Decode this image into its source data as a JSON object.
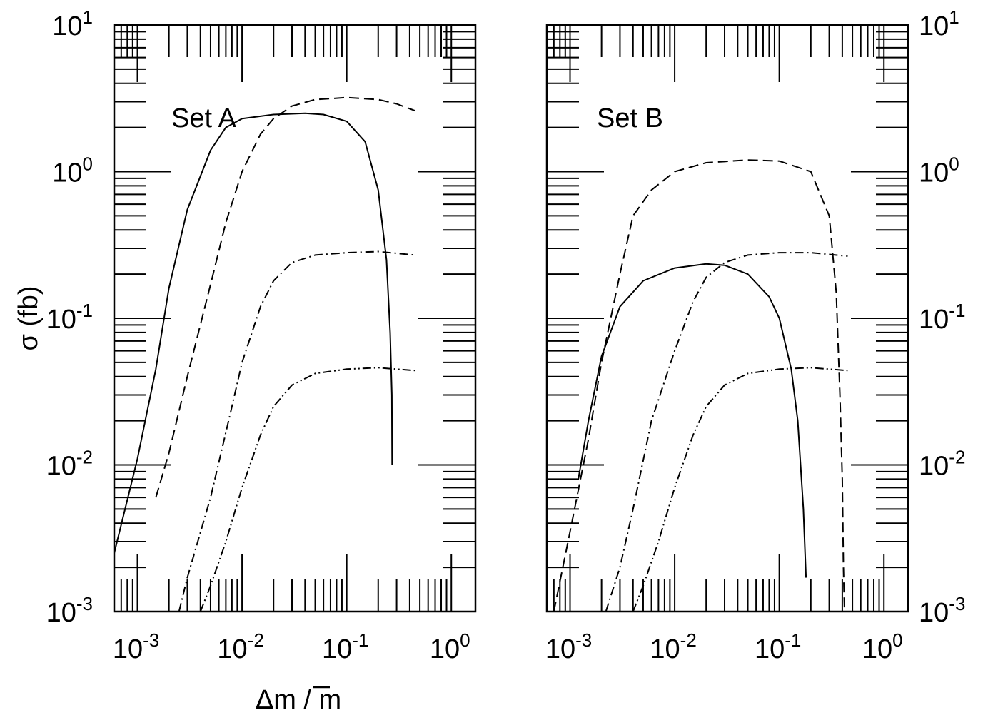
{
  "ylabel": "σ (fb)",
  "xlabel": "Δm / m",
  "chart_data": [
    {
      "type": "line",
      "title": "Set A",
      "xscale": "log",
      "yscale": "log",
      "xlim": [
        0.0006,
        1.7
      ],
      "ylim": [
        0.001,
        10
      ],
      "x_ticks": [
        {
          "base": "10",
          "exp": "-3",
          "value": 0.001
        },
        {
          "base": "10",
          "exp": "-2",
          "value": 0.01
        },
        {
          "base": "10",
          "exp": "-1",
          "value": 0.1
        },
        {
          "base": "10",
          "exp": "0",
          "value": 1
        }
      ],
      "y_ticks": [
        {
          "base": "10",
          "exp": "-3",
          "value": 0.001
        },
        {
          "base": "10",
          "exp": "-2",
          "value": 0.01
        },
        {
          "base": "10",
          "exp": "-1",
          "value": 0.1
        },
        {
          "base": "10",
          "exp": "0",
          "value": 1
        },
        {
          "base": "10",
          "exp": "1",
          "value": 10
        }
      ],
      "series": [
        {
          "style": "solid",
          "points": [
            [
              0.0006,
              0.0025
            ],
            [
              0.001,
              0.011
            ],
            [
              0.0015,
              0.045
            ],
            [
              0.002,
              0.16
            ],
            [
              0.003,
              0.55
            ],
            [
              0.005,
              1.4
            ],
            [
              0.007,
              2.0
            ],
            [
              0.01,
              2.3
            ],
            [
              0.02,
              2.45
            ],
            [
              0.04,
              2.5
            ],
            [
              0.06,
              2.45
            ],
            [
              0.1,
              2.2
            ],
            [
              0.15,
              1.6
            ],
            [
              0.2,
              0.75
            ],
            [
              0.24,
              0.25
            ],
            [
              0.26,
              0.08
            ],
            [
              0.27,
              0.03
            ],
            [
              0.272,
              0.01
            ]
          ]
        },
        {
          "style": "dashed",
          "points": [
            [
              0.0015,
              0.006
            ],
            [
              0.002,
              0.012
            ],
            [
              0.003,
              0.04
            ],
            [
              0.005,
              0.17
            ],
            [
              0.007,
              0.45
            ],
            [
              0.01,
              1.0
            ],
            [
              0.015,
              1.8
            ],
            [
              0.02,
              2.3
            ],
            [
              0.03,
              2.8
            ],
            [
              0.05,
              3.1
            ],
            [
              0.1,
              3.2
            ],
            [
              0.2,
              3.1
            ],
            [
              0.3,
              2.9
            ],
            [
              0.45,
              2.6
            ]
          ]
        },
        {
          "style": "dashdot",
          "points": [
            [
              0.0025,
              0.001
            ],
            [
              0.003,
              0.0017
            ],
            [
              0.005,
              0.006
            ],
            [
              0.008,
              0.025
            ],
            [
              0.01,
              0.05
            ],
            [
              0.015,
              0.12
            ],
            [
              0.02,
              0.18
            ],
            [
              0.03,
              0.24
            ],
            [
              0.05,
              0.27
            ],
            [
              0.1,
              0.28
            ],
            [
              0.2,
              0.285
            ],
            [
              0.45,
              0.27
            ]
          ]
        },
        {
          "style": "dashdotdot",
          "points": [
            [
              0.004,
              0.001
            ],
            [
              0.005,
              0.0015
            ],
            [
              0.007,
              0.003
            ],
            [
              0.01,
              0.007
            ],
            [
              0.015,
              0.016
            ],
            [
              0.02,
              0.025
            ],
            [
              0.03,
              0.035
            ],
            [
              0.05,
              0.042
            ],
            [
              0.1,
              0.045
            ],
            [
              0.2,
              0.046
            ],
            [
              0.45,
              0.044
            ]
          ]
        }
      ]
    },
    {
      "type": "line",
      "title": "Set B",
      "xscale": "log",
      "yscale": "log",
      "xlim": [
        0.0006,
        1.7
      ],
      "ylim": [
        0.001,
        10
      ],
      "x_ticks": [
        {
          "base": "10",
          "exp": "-3",
          "value": 0.001
        },
        {
          "base": "10",
          "exp": "-2",
          "value": 0.01
        },
        {
          "base": "10",
          "exp": "-1",
          "value": 0.1
        },
        {
          "base": "10",
          "exp": "0",
          "value": 1
        }
      ],
      "y_ticks": [
        {
          "base": "10",
          "exp": "-3",
          "value": 0.001
        },
        {
          "base": "10",
          "exp": "-2",
          "value": 0.01
        },
        {
          "base": "10",
          "exp": "-1",
          "value": 0.1
        },
        {
          "base": "10",
          "exp": "0",
          "value": 1
        },
        {
          "base": "10",
          "exp": "1",
          "value": 10
        }
      ],
      "series": [
        {
          "style": "solid",
          "points": [
            [
              0.0012,
              0.008
            ],
            [
              0.0015,
              0.02
            ],
            [
              0.002,
              0.055
            ],
            [
              0.003,
              0.12
            ],
            [
              0.005,
              0.18
            ],
            [
              0.01,
              0.22
            ],
            [
              0.02,
              0.235
            ],
            [
              0.03,
              0.23
            ],
            [
              0.05,
              0.2
            ],
            [
              0.08,
              0.14
            ],
            [
              0.1,
              0.1
            ],
            [
              0.13,
              0.045
            ],
            [
              0.15,
              0.02
            ],
            [
              0.17,
              0.005
            ],
            [
              0.18,
              0.0017
            ]
          ]
        },
        {
          "style": "dashed",
          "points": [
            [
              0.0007,
              0.001
            ],
            [
              0.001,
              0.0035
            ],
            [
              0.0015,
              0.015
            ],
            [
              0.002,
              0.05
            ],
            [
              0.003,
              0.2
            ],
            [
              0.004,
              0.5
            ],
            [
              0.006,
              0.75
            ],
            [
              0.01,
              1.0
            ],
            [
              0.02,
              1.15
            ],
            [
              0.05,
              1.2
            ],
            [
              0.1,
              1.18
            ],
            [
              0.2,
              1.0
            ],
            [
              0.3,
              0.5
            ],
            [
              0.35,
              0.15
            ],
            [
              0.38,
              0.03
            ],
            [
              0.4,
              0.008
            ],
            [
              0.41,
              0.002
            ],
            [
              0.42,
              0.001
            ]
          ]
        },
        {
          "style": "dashdot",
          "points": [
            [
              0.0022,
              0.001
            ],
            [
              0.003,
              0.002
            ],
            [
              0.004,
              0.005
            ],
            [
              0.006,
              0.02
            ],
            [
              0.01,
              0.06
            ],
            [
              0.015,
              0.13
            ],
            [
              0.02,
              0.19
            ],
            [
              0.03,
              0.24
            ],
            [
              0.05,
              0.27
            ],
            [
              0.1,
              0.28
            ],
            [
              0.2,
              0.28
            ],
            [
              0.45,
              0.265
            ]
          ]
        },
        {
          "style": "dashdotdot",
          "points": [
            [
              0.004,
              0.001
            ],
            [
              0.005,
              0.0015
            ],
            [
              0.007,
              0.003
            ],
            [
              0.01,
              0.007
            ],
            [
              0.015,
              0.016
            ],
            [
              0.02,
              0.025
            ],
            [
              0.03,
              0.035
            ],
            [
              0.05,
              0.042
            ],
            [
              0.1,
              0.045
            ],
            [
              0.2,
              0.046
            ],
            [
              0.45,
              0.044
            ]
          ]
        }
      ]
    }
  ]
}
